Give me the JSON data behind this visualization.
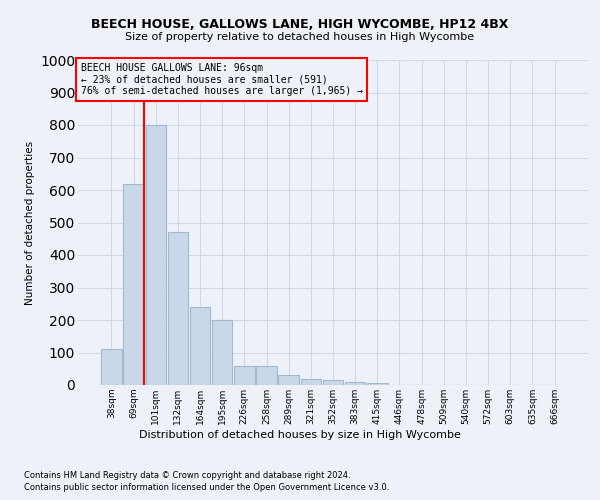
{
  "title": "BEECH HOUSE, GALLOWS LANE, HIGH WYCOMBE, HP12 4BX",
  "subtitle": "Size of property relative to detached houses in High Wycombe",
  "xlabel": "Distribution of detached houses by size in High Wycombe",
  "ylabel": "Number of detached properties",
  "footnote1": "Contains HM Land Registry data © Crown copyright and database right 2024.",
  "footnote2": "Contains public sector information licensed under the Open Government Licence v3.0.",
  "bar_labels": [
    "38sqm",
    "69sqm",
    "101sqm",
    "132sqm",
    "164sqm",
    "195sqm",
    "226sqm",
    "258sqm",
    "289sqm",
    "321sqm",
    "352sqm",
    "383sqm",
    "415sqm",
    "446sqm",
    "478sqm",
    "509sqm",
    "540sqm",
    "572sqm",
    "603sqm",
    "635sqm",
    "666sqm"
  ],
  "bar_values": [
    110,
    620,
    800,
    470,
    240,
    200,
    60,
    60,
    30,
    20,
    15,
    10,
    5,
    0,
    0,
    0,
    0,
    0,
    0,
    0,
    0
  ],
  "bar_color": "#c8d8e8",
  "bar_edge_color": "#a0b8d0",
  "grid_color": "#d0d8e8",
  "background_color": "#eef2f8",
  "vline_color": "red",
  "vline_x": 1.45,
  "annotation_text": "BEECH HOUSE GALLOWS LANE: 96sqm\n← 23% of detached houses are smaller (591)\n76% of semi-detached houses are larger (1,965) →",
  "annotation_box_color": "red",
  "ylim": [
    0,
    1000
  ],
  "yticks": [
    0,
    100,
    200,
    300,
    400,
    500,
    600,
    700,
    800,
    900,
    1000
  ]
}
